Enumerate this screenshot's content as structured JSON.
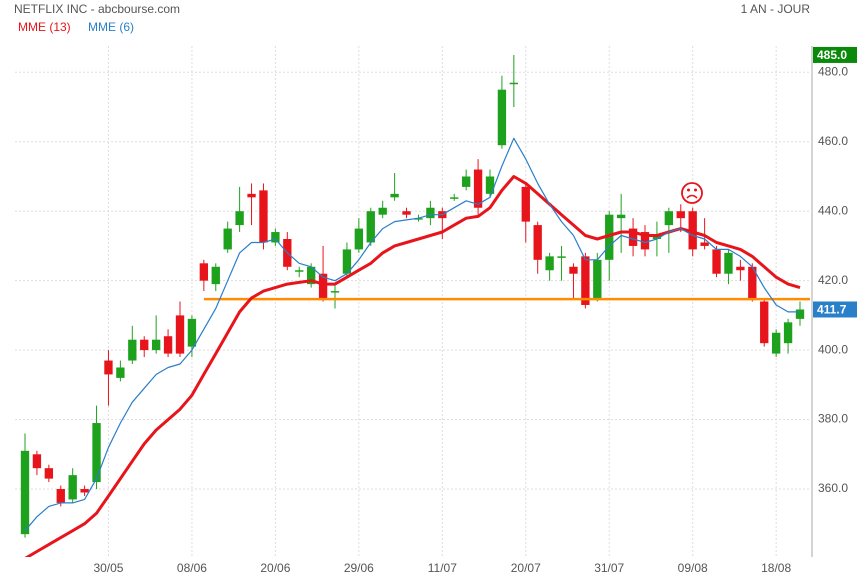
{
  "chart_data": {
    "type": "candlestick",
    "title": "NETFLIX INC - abcbourse.com",
    "period": "1 AN - JOUR",
    "categories": [
      null,
      null,
      null,
      null,
      null,
      null,
      null,
      "30/05",
      null,
      null,
      null,
      null,
      null,
      null,
      "08/06",
      null,
      null,
      null,
      null,
      null,
      null,
      "20/06",
      null,
      null,
      null,
      null,
      null,
      null,
      "29/06",
      null,
      null,
      null,
      null,
      null,
      null,
      "11/07",
      null,
      null,
      null,
      null,
      null,
      null,
      "20/07",
      null,
      null,
      null,
      null,
      null,
      null,
      "31/07",
      null,
      null,
      null,
      null,
      null,
      null,
      "09/08",
      null,
      null,
      null,
      null,
      null,
      null,
      "18/08",
      null,
      null
    ],
    "open": [
      347,
      370,
      366,
      360,
      357,
      360,
      362,
      397,
      392,
      397,
      403,
      400,
      404,
      410,
      401,
      425,
      419,
      429,
      436,
      445,
      446,
      431,
      432,
      423,
      419,
      422,
      417,
      422,
      429,
      431,
      439,
      444,
      440,
      438,
      438,
      440,
      444,
      447,
      452,
      445,
      459,
      477,
      447,
      436,
      423,
      427,
      424,
      427,
      415,
      426,
      438,
      435,
      434,
      432,
      436,
      440,
      440,
      431,
      429,
      422,
      424,
      424,
      414,
      399,
      402,
      409
    ],
    "high": [
      376,
      371,
      367,
      361,
      366,
      361,
      384,
      400,
      397,
      407,
      404,
      410,
      406,
      414,
      410,
      426,
      425,
      437,
      447,
      448,
      448,
      435,
      434,
      424,
      425,
      430,
      419,
      431,
      438,
      441,
      443,
      451,
      441,
      439,
      443,
      441,
      445,
      452,
      455,
      452,
      479,
      485,
      448,
      437,
      428,
      430,
      425,
      428,
      428,
      440,
      445,
      438,
      436,
      437,
      441,
      442,
      441,
      438,
      430,
      429,
      426,
      425,
      415,
      406,
      409,
      414
    ],
    "low": [
      346,
      364,
      362,
      355,
      356,
      358,
      360,
      384,
      391,
      396,
      398,
      399,
      398,
      398,
      398,
      417,
      417,
      428,
      434,
      436,
      429,
      430,
      423,
      421,
      418,
      414,
      412,
      421,
      428,
      430,
      438,
      443,
      438,
      437,
      436,
      432,
      443,
      446,
      439,
      444,
      458,
      470,
      431,
      422,
      420,
      420,
      415,
      412,
      414,
      420,
      428,
      427,
      427,
      427,
      428,
      434,
      427,
      429,
      421,
      419,
      420,
      414,
      401,
      398,
      399,
      407
    ],
    "close": [
      371,
      366,
      363,
      356,
      364,
      359,
      379,
      393,
      395,
      403,
      400,
      403,
      399,
      399,
      409,
      420,
      424,
      435,
      440,
      444,
      431,
      434,
      424,
      423,
      424,
      415,
      417,
      429,
      435,
      440,
      441,
      445,
      439,
      438,
      441,
      438,
      444,
      450,
      441,
      450,
      475,
      477,
      437,
      426,
      427,
      427,
      422,
      413,
      426,
      439,
      439,
      430,
      429,
      433,
      440,
      438,
      429,
      430,
      422,
      428,
      423,
      415,
      402,
      405,
      408,
      411.7
    ],
    "up_color": "#1ea21e",
    "down_color": "#e8141b",
    "lines": [
      {
        "name": "MME (13)",
        "color": "#e8141b",
        "width": 3,
        "values": [
          340,
          342,
          344,
          346,
          348,
          350,
          353,
          358,
          363,
          368,
          373,
          377,
          380,
          383,
          387,
          393,
          399,
          405,
          411,
          415,
          417,
          418,
          419,
          419.5,
          420,
          419,
          419,
          421,
          423,
          425,
          428,
          430,
          431,
          432,
          433,
          434,
          436,
          438,
          438.5,
          441,
          446,
          450,
          448,
          445,
          442,
          439,
          436,
          433,
          432,
          433,
          434,
          434,
          433,
          433,
          434,
          435,
          434,
          433,
          431,
          430,
          429,
          427,
          424,
          421,
          419,
          418
        ]
      },
      {
        "name": "MME (6)",
        "color": "#2a7fc9",
        "width": 1.2,
        "values": [
          348,
          352,
          355,
          356,
          356,
          357,
          363,
          372,
          379,
          385,
          389,
          393,
          395,
          396,
          400,
          406,
          412,
          420,
          428,
          431,
          431,
          432,
          428,
          425,
          424,
          421,
          420,
          422,
          426,
          431,
          435,
          437,
          437.5,
          438,
          439,
          439,
          441,
          443,
          442,
          444,
          453,
          461,
          455,
          448,
          442,
          437,
          433,
          426,
          426,
          430,
          433,
          432,
          431,
          432,
          434,
          435,
          433,
          432,
          429,
          429,
          427,
          424,
          418,
          413,
          411,
          411
        ]
      }
    ],
    "hline": {
      "value": 414.7,
      "color": "#ff8c00"
    },
    "price_tags": [
      {
        "value": 485,
        "label": "485.0",
        "color": "#0a8a0a"
      },
      {
        "value": 411.7,
        "label": "411.7",
        "color": "#2a7fc9"
      }
    ],
    "ylim": [
      341,
      487
    ],
    "yticks": [
      {
        "value": 360,
        "label": "360.0"
      },
      {
        "value": 380,
        "label": "380.0"
      },
      {
        "value": 400,
        "label": "400.0"
      },
      {
        "value": 420,
        "label": "420.0"
      },
      {
        "value": 440,
        "label": "440.0"
      },
      {
        "value": 460,
        "label": "460.0"
      },
      {
        "value": 480,
        "label": "480.0"
      }
    ],
    "grid": true
  }
}
